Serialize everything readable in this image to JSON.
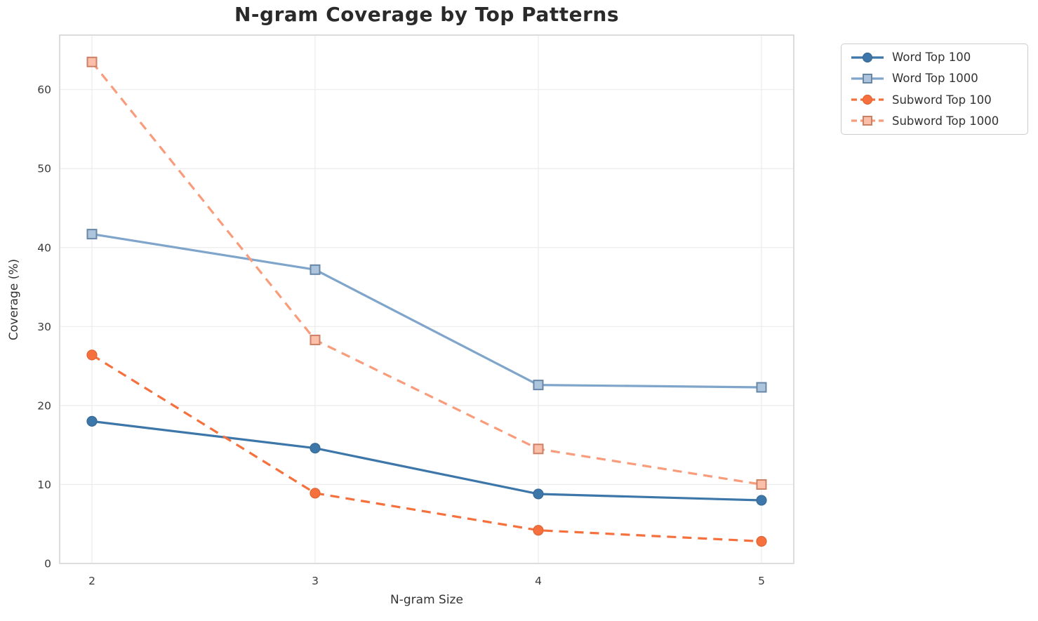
{
  "figure": {
    "title": "N-gram Coverage by Top Patterns",
    "xlabel": "N-gram Size",
    "ylabel": "Coverage (%)"
  },
  "chart_data": {
    "type": "line",
    "title": "N-gram Coverage by Top Patterns",
    "xlabel": "N-gram Size",
    "ylabel": "Coverage (%)",
    "x": [
      2,
      3,
      4,
      5
    ],
    "xticks": [
      2,
      3,
      4,
      5
    ],
    "yticks": [
      0,
      10,
      20,
      30,
      40,
      50,
      60
    ],
    "ylim": [
      0,
      66.9
    ],
    "grid": true,
    "legend_position": "outside upper right",
    "series": [
      {
        "name": "Word Top 100",
        "values": [
          18.0,
          14.6,
          8.8,
          8.0
        ],
        "color": "#3d76a8",
        "line_style": "solid",
        "marker": "circle"
      },
      {
        "name": "Word Top 1000",
        "values": [
          41.7,
          37.2,
          22.6,
          22.3
        ],
        "color": "#7fa5cb",
        "line_style": "solid",
        "marker": "square"
      },
      {
        "name": "Subword Top 100",
        "values": [
          26.4,
          8.9,
          4.2,
          2.8
        ],
        "color": "#f5703c",
        "line_style": "dashed",
        "marker": "circle"
      },
      {
        "name": "Subword Top 1000",
        "values": [
          63.5,
          28.3,
          14.5,
          10.0
        ],
        "color": "#f99c7b",
        "line_style": "dashed",
        "marker": "square"
      }
    ],
    "colors": {
      "grid": "#ebebeb",
      "spine": "#cdcdcd",
      "tick_text": "#3a3a3a"
    }
  }
}
